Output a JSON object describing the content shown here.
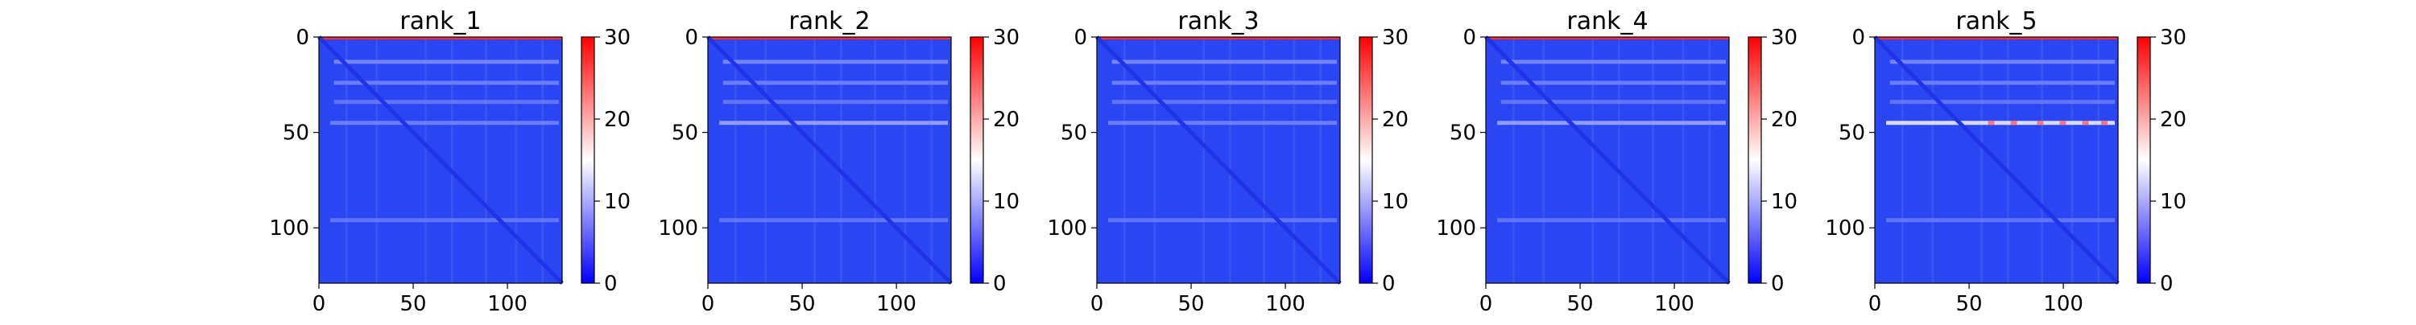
{
  "chart_data": [
    {
      "type": "heatmap",
      "title": "rank_1",
      "x_ticks": [
        "0",
        "50",
        "100"
      ],
      "y_ticks": [
        "0",
        "50",
        "100"
      ],
      "xlim": [
        0,
        129
      ],
      "ylim": [
        129,
        0
      ],
      "colorbar_ticks": [
        "0",
        "10",
        "20",
        "30"
      ],
      "colorbar_range": [
        0,
        30
      ],
      "colormap": "bwr",
      "band_rows": [
        13,
        24,
        34,
        45,
        96
      ],
      "band_intensity": [
        0.4,
        0.35,
        0.3,
        0.35,
        0.3
      ]
    },
    {
      "type": "heatmap",
      "title": "rank_2",
      "x_ticks": [
        "0",
        "50",
        "100"
      ],
      "y_ticks": [
        "0",
        "50",
        "100"
      ],
      "xlim": [
        0,
        129
      ],
      "ylim": [
        129,
        0
      ],
      "colorbar_ticks": [
        "0",
        "10",
        "20",
        "30"
      ],
      "colorbar_range": [
        0,
        30
      ],
      "colormap": "bwr",
      "band_rows": [
        13,
        24,
        34,
        45,
        96
      ],
      "band_intensity": [
        0.4,
        0.35,
        0.3,
        0.55,
        0.3
      ]
    },
    {
      "type": "heatmap",
      "title": "rank_3",
      "x_ticks": [
        "0",
        "50",
        "100"
      ],
      "y_ticks": [
        "0",
        "50",
        "100"
      ],
      "xlim": [
        0,
        129
      ],
      "ylim": [
        129,
        0
      ],
      "colorbar_ticks": [
        "0",
        "10",
        "20",
        "30"
      ],
      "colorbar_range": [
        0,
        30
      ],
      "colormap": "bwr",
      "band_rows": [
        13,
        24,
        34,
        45,
        96
      ],
      "band_intensity": [
        0.4,
        0.35,
        0.3,
        0.35,
        0.3
      ]
    },
    {
      "type": "heatmap",
      "title": "rank_4",
      "x_ticks": [
        "0",
        "50",
        "100"
      ],
      "y_ticks": [
        "0",
        "50",
        "100"
      ],
      "xlim": [
        0,
        129
      ],
      "ylim": [
        129,
        0
      ],
      "colorbar_ticks": [
        "0",
        "10",
        "20",
        "30"
      ],
      "colorbar_range": [
        0,
        30
      ],
      "colormap": "bwr",
      "band_rows": [
        13,
        24,
        34,
        45,
        96
      ],
      "band_intensity": [
        0.4,
        0.35,
        0.3,
        0.55,
        0.3
      ]
    },
    {
      "type": "heatmap",
      "title": "rank_5",
      "x_ticks": [
        "0",
        "50",
        "100"
      ],
      "y_ticks": [
        "0",
        "50",
        "100"
      ],
      "xlim": [
        0,
        129
      ],
      "ylim": [
        129,
        0
      ],
      "colorbar_ticks": [
        "0",
        "10",
        "20",
        "30"
      ],
      "colorbar_range": [
        0,
        30
      ],
      "colormap": "bwr",
      "band_rows": [
        13,
        24,
        34,
        45,
        96
      ],
      "band_intensity": [
        0.4,
        0.35,
        0.3,
        0.95,
        0.3
      ]
    }
  ],
  "colors": {
    "low": "#0000ff",
    "mid": "#ffffff",
    "high": "#ff0000",
    "base": "#2a45f2",
    "diagonal": "#1f33e8"
  }
}
